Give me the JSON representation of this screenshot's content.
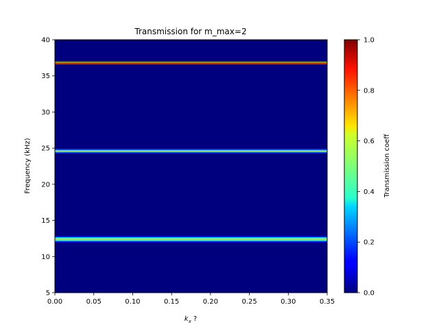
{
  "chart_data": {
    "type": "heatmap",
    "title": "Transmission for m_max=2",
    "xlabel_main": "k",
    "xlabel_sub": "x",
    "xlabel_suffix": " ?",
    "ylabel": "Frequency (kHz)",
    "colorbar_label": "Transmission coeff",
    "colormap": "jet",
    "background_value": 0.0,
    "xlim": [
      0.0,
      0.35
    ],
    "ylim": [
      5,
      40
    ],
    "clim": [
      0.0,
      1.0
    ],
    "x_ticks": [
      {
        "value": 0.0,
        "label": "0.00"
      },
      {
        "value": 0.05,
        "label": "0.05"
      },
      {
        "value": 0.1,
        "label": "0.10"
      },
      {
        "value": 0.15,
        "label": "0.15"
      },
      {
        "value": 0.2,
        "label": "0.20"
      },
      {
        "value": 0.25,
        "label": "0.25"
      },
      {
        "value": 0.3,
        "label": "0.30"
      },
      {
        "value": 0.35,
        "label": "0.35"
      }
    ],
    "y_ticks": [
      {
        "value": 5,
        "label": "5"
      },
      {
        "value": 10,
        "label": "10"
      },
      {
        "value": 15,
        "label": "15"
      },
      {
        "value": 20,
        "label": "20"
      },
      {
        "value": 25,
        "label": "25"
      },
      {
        "value": 30,
        "label": "30"
      },
      {
        "value": 35,
        "label": "35"
      },
      {
        "value": 40,
        "label": "40"
      }
    ],
    "colorbar_ticks": [
      {
        "value": 0.0,
        "label": "0.0"
      },
      {
        "value": 0.2,
        "label": "0.2"
      },
      {
        "value": 0.4,
        "label": "0.4"
      },
      {
        "value": 0.6,
        "label": "0.6"
      },
      {
        "value": 0.8,
        "label": "0.8"
      },
      {
        "value": 1.0,
        "label": "1.0"
      }
    ],
    "bands": [
      {
        "center_khz": 12.4,
        "profile": [
          {
            "offset_khz": -0.35,
            "value": 0.15
          },
          {
            "offset_khz": -0.2,
            "value": 0.35
          },
          {
            "offset_khz": -0.08,
            "value": 0.5
          },
          {
            "offset_khz": 0.0,
            "value": 0.65
          },
          {
            "offset_khz": 0.08,
            "value": 0.5
          },
          {
            "offset_khz": 0.2,
            "value": 0.35
          },
          {
            "offset_khz": 0.35,
            "value": 0.15
          }
        ]
      },
      {
        "center_khz": 24.6,
        "profile": [
          {
            "offset_khz": -0.22,
            "value": 0.2
          },
          {
            "offset_khz": -0.08,
            "value": 0.4
          },
          {
            "offset_khz": 0.0,
            "value": 0.55
          },
          {
            "offset_khz": 0.08,
            "value": 0.4
          },
          {
            "offset_khz": 0.22,
            "value": 0.2
          }
        ]
      },
      {
        "center_khz": 36.8,
        "profile": [
          {
            "offset_khz": -0.12,
            "value": 0.7
          },
          {
            "offset_khz": -0.04,
            "value": 0.92
          },
          {
            "offset_khz": 0.04,
            "value": 0.85
          },
          {
            "offset_khz": 0.12,
            "value": 0.6
          }
        ]
      }
    ]
  }
}
